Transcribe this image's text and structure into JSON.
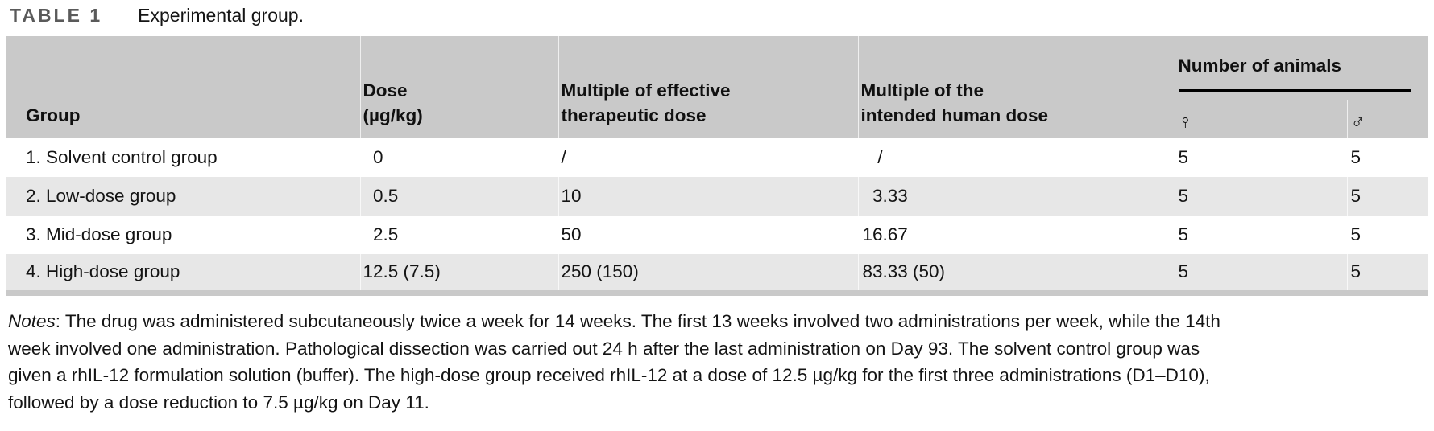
{
  "caption": {
    "label": "TABLE 1",
    "text": "Experimental group."
  },
  "table": {
    "headers": [
      {
        "id": "group",
        "lines": [
          "Group"
        ]
      },
      {
        "id": "dose",
        "lines": [
          "Dose",
          "(µg/kg)"
        ]
      },
      {
        "id": "multiple_effective",
        "lines": [
          "Multiple of effective",
          "therapeutic dose"
        ]
      },
      {
        "id": "multiple_human",
        "lines": [
          "Multiple of the",
          "intended human dose"
        ]
      }
    ],
    "animals": {
      "label": "Number of animals",
      "female": "♀",
      "male": "♂"
    },
    "rows": [
      [
        "1. Solvent control group",
        "0",
        "/",
        "/",
        "5",
        "5"
      ],
      [
        "2. Low-dose group",
        "0.5",
        "10",
        "3.33",
        "5",
        "5"
      ],
      [
        "3. Mid-dose group",
        "2.5",
        "50",
        "16.67",
        "5",
        "5"
      ],
      [
        "4. High-dose group",
        "12.5 (7.5)",
        "250 (150)",
        "83.33 (50)",
        "5",
        "5"
      ]
    ]
  },
  "notes": {
    "prefix": "Notes",
    "lines": [
      "The drug was administered subcutaneously twice a week for 14 weeks. The first 13 weeks involved two administrations per week, while the 14th",
      "week involved one administration. Pathological dissection was carried out 24 h after the last administration on Day 93. The solvent control group was",
      "given a rhIL-12 formulation solution (buffer). The high-dose group received rhIL-12 at a dose of 12.5 µg/kg for the first three administrations (D1–D10),",
      "followed by a dose reduction to 7.5 µg/kg on Day 11."
    ]
  }
}
